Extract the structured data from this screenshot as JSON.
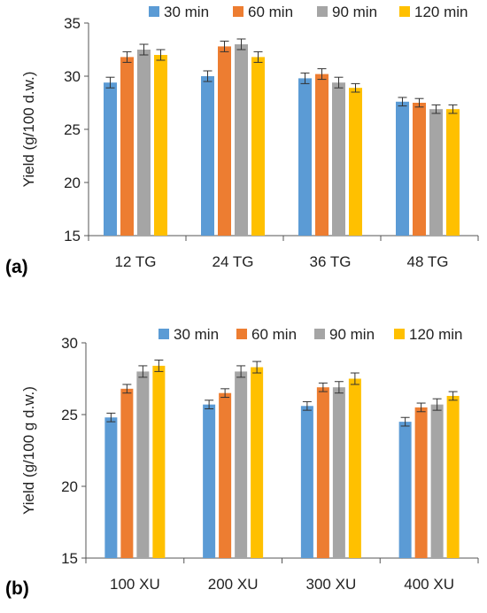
{
  "chart_data": [
    {
      "type": "bar",
      "panel_label": "(a)",
      "ylabel": "Yield (g/100 d.w.)",
      "ylim": [
        15,
        35
      ],
      "yticks": [
        "15",
        "20",
        "25",
        "30",
        "35"
      ],
      "categories": [
        "12 TG",
        "24 TG",
        "36 TG",
        "48 TG"
      ],
      "legend_position": "top-right",
      "grid": false,
      "series": [
        {
          "name": "30 min",
          "color": "#5b9bd5",
          "values": [
            29.4,
            30.0,
            29.8,
            27.6
          ],
          "errors": [
            0.5,
            0.5,
            0.5,
            0.4
          ]
        },
        {
          "name": "60 min",
          "color": "#ed7d31",
          "values": [
            31.8,
            32.8,
            30.2,
            27.5
          ],
          "errors": [
            0.5,
            0.5,
            0.5,
            0.4
          ]
        },
        {
          "name": "90 min",
          "color": "#a5a5a5",
          "values": [
            32.5,
            33.0,
            29.4,
            26.9
          ],
          "errors": [
            0.5,
            0.5,
            0.5,
            0.4
          ]
        },
        {
          "name": "120 min",
          "color": "#ffc000",
          "values": [
            32.0,
            31.8,
            28.9,
            26.9
          ],
          "errors": [
            0.5,
            0.5,
            0.4,
            0.4
          ]
        }
      ]
    },
    {
      "type": "bar",
      "panel_label": "(b)",
      "ylabel": "Yield (g/100 g d.w.)",
      "ylim": [
        15,
        30
      ],
      "yticks": [
        "15",
        "20",
        "25",
        "30"
      ],
      "categories": [
        "100 XU",
        "200 XU",
        "300 XU",
        "400 XU"
      ],
      "legend_position": "top-right",
      "grid": false,
      "series": [
        {
          "name": "30 min",
          "color": "#5b9bd5",
          "values": [
            24.8,
            25.7,
            25.6,
            24.5
          ],
          "errors": [
            0.3,
            0.3,
            0.3,
            0.3
          ]
        },
        {
          "name": "60 min",
          "color": "#ed7d31",
          "values": [
            26.8,
            26.5,
            26.9,
            25.5
          ],
          "errors": [
            0.3,
            0.3,
            0.3,
            0.3
          ]
        },
        {
          "name": "90 min",
          "color": "#a5a5a5",
          "values": [
            28.0,
            28.0,
            26.9,
            25.7
          ],
          "errors": [
            0.4,
            0.4,
            0.4,
            0.4
          ]
        },
        {
          "name": "120 min",
          "color": "#ffc000",
          "values": [
            28.4,
            28.3,
            27.5,
            26.3
          ],
          "errors": [
            0.4,
            0.4,
            0.4,
            0.3
          ]
        }
      ]
    }
  ]
}
